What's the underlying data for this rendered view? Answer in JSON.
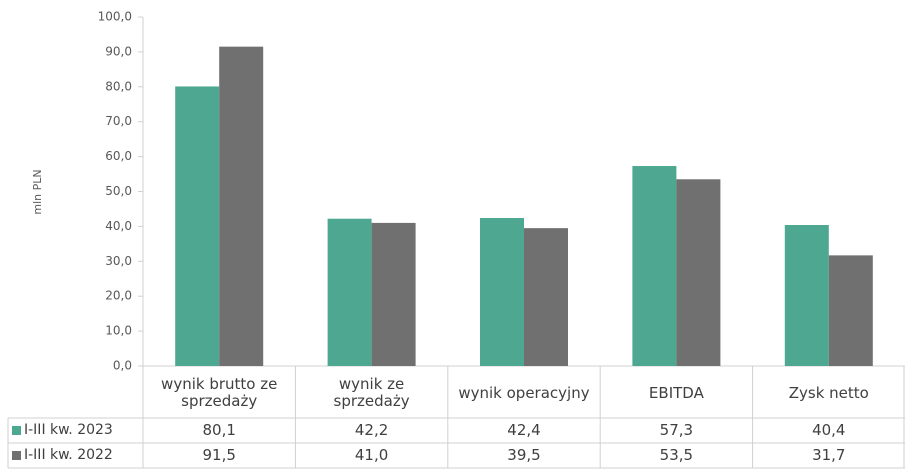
{
  "chart_data": {
    "type": "bar",
    "y_label": "mln PLN",
    "categories": [
      "wynik brutto ze sprzedaży",
      "wynik ze sprzedaży",
      "wynik operacyjny",
      "EBITDA",
      "Zysk netto"
    ],
    "series": [
      {
        "name": "I-III kw. 2023",
        "color": "#4ea891",
        "values": [
          80.1,
          42.2,
          42.4,
          57.3,
          40.4
        ],
        "value_labels": [
          "80,1",
          "42,2",
          "42,4",
          "57,3",
          "40,4"
        ]
      },
      {
        "name": "I-III kw. 2022",
        "color": "#707070",
        "values": [
          91.5,
          41.0,
          39.5,
          53.5,
          31.7
        ],
        "value_labels": [
          "91,5",
          "41,0",
          "39,5",
          "53,5",
          "31,7"
        ]
      }
    ],
    "ylim": [
      0,
      100
    ],
    "yticks": [
      {
        "value": 0,
        "label": "0,0"
      },
      {
        "value": 10,
        "label": "10,0"
      },
      {
        "value": 20,
        "label": "20,0"
      },
      {
        "value": 30,
        "label": "30,0"
      },
      {
        "value": 40,
        "label": "40,0"
      },
      {
        "value": 50,
        "label": "50,0"
      },
      {
        "value": 60,
        "label": "60,0"
      },
      {
        "value": 70,
        "label": "70,0"
      },
      {
        "value": 80,
        "label": "80,0"
      },
      {
        "value": 90,
        "label": "90,0"
      },
      {
        "value": 100,
        "label": "100,0"
      }
    ],
    "grid": false
  }
}
